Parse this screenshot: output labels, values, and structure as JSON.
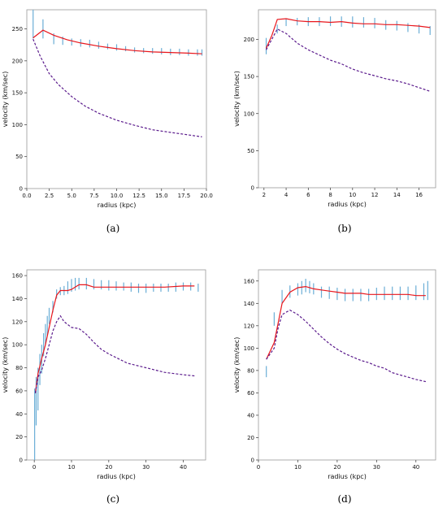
{
  "colors": {
    "model": "#e8161c",
    "baryonic": "#5a1a8c",
    "error_bars": "#6baed6",
    "axis": "#999999"
  },
  "chart_data": [
    {
      "type": "line",
      "caption": "(a)",
      "xlabel": "radius (kpc)",
      "ylabel": "velocity (km/sec)",
      "xlim": [
        0,
        20
      ],
      "ylim": [
        0,
        280
      ],
      "xticks": [
        0.0,
        2.5,
        5.0,
        7.5,
        10.0,
        12.5,
        15.0,
        17.5,
        20.0
      ],
      "xtick_labels": [
        "0.0",
        "2.5",
        "5.0",
        "7.5",
        "10.0",
        "12.5",
        "15.0",
        "17.5",
        "20.0"
      ],
      "yticks": [
        0,
        50,
        100,
        150,
        200,
        250
      ],
      "ytick_labels": [
        "0",
        "50",
        "100",
        "150",
        "200",
        "250"
      ],
      "series": [
        {
          "style": "solid",
          "color": "#e8161c",
          "x": [
            0.7,
            1.8,
            3.0,
            4.5,
            6.0,
            8.0,
            10.0,
            12.0,
            14.0,
            16.0,
            18.0,
            19.5
          ],
          "y": [
            236,
            248,
            240,
            233,
            228,
            223,
            219,
            216,
            214,
            213,
            212,
            211
          ]
        },
        {
          "style": "dashed",
          "color": "#5a1a8c",
          "x": [
            0.7,
            1.5,
            2.5,
            3.5,
            5.0,
            6.5,
            8.0,
            10.0,
            12.0,
            14.0,
            16.0,
            18.0,
            19.5
          ],
          "y": [
            234,
            207,
            180,
            163,
            144,
            129,
            118,
            107,
            99,
            92,
            88,
            84,
            81
          ]
        }
      ],
      "errorbars": {
        "x": [
          0.7,
          1.8,
          3.0,
          4.0,
          5.0,
          6.0,
          7.0,
          8.0,
          9.0,
          10.0,
          11.0,
          12.0,
          13.0,
          14.0,
          15.0,
          16.0,
          17.0,
          18.0,
          19.0,
          19.5
        ],
        "lo": [
          235,
          235,
          226,
          225,
          224,
          222,
          221,
          219,
          218,
          216,
          215,
          213,
          212,
          211,
          210,
          209,
          209,
          208,
          208,
          208
        ],
        "hi": [
          280,
          265,
          243,
          238,
          235,
          234,
          233,
          230,
          227,
          226,
          223,
          221,
          220,
          220,
          220,
          219,
          219,
          218,
          218,
          218
        ]
      }
    },
    {
      "type": "line",
      "caption": "(b)",
      "xlabel": "radius (kpc)",
      "ylabel": "velocity (km/sec)",
      "xlim": [
        1.5,
        17.5
      ],
      "ylim": [
        0,
        240
      ],
      "xticks": [
        2,
        4,
        6,
        8,
        10,
        12,
        14,
        16
      ],
      "xtick_labels": [
        "2",
        "4",
        "6",
        "8",
        "10",
        "12",
        "14",
        "16"
      ],
      "yticks": [
        0,
        50,
        100,
        150,
        200
      ],
      "ytick_labels": [
        "0",
        "50",
        "100",
        "150",
        "200"
      ],
      "series": [
        {
          "style": "solid",
          "color": "#e8161c",
          "x": [
            2.2,
            2.7,
            3.2,
            4.0,
            5.0,
            6.0,
            7.0,
            8.0,
            9.0,
            10.0,
            11.0,
            12.0,
            13.0,
            14.0,
            15.0,
            16.0,
            17.0
          ],
          "y": [
            188,
            205,
            227,
            228,
            225,
            224,
            224,
            223,
            224,
            222,
            221,
            221,
            220,
            220,
            219,
            218,
            216
          ]
        },
        {
          "style": "dashed",
          "color": "#5a1a8c",
          "x": [
            2.2,
            2.7,
            3.2,
            4.0,
            5.0,
            6.0,
            7.0,
            8.0,
            9.0,
            10.0,
            11.0,
            12.0,
            13.0,
            14.0,
            15.0,
            16.0,
            17.0
          ],
          "y": [
            186,
            200,
            214,
            208,
            195,
            186,
            179,
            172,
            167,
            160,
            155,
            151,
            147,
            144,
            140,
            135,
            130
          ]
        }
      ],
      "errorbars": {
        "x": [
          2.2,
          3.2,
          4.0,
          5.0,
          6.0,
          7.0,
          8.0,
          9.0,
          10.0,
          11.0,
          12.0,
          13.0,
          14.0,
          15.0,
          16.0,
          17.0
        ],
        "lo": [
          180,
          208,
          218,
          219,
          218,
          218,
          218,
          217,
          216,
          216,
          215,
          213,
          212,
          210,
          208,
          206
        ],
        "hi": [
          202,
          220,
          228,
          229,
          230,
          230,
          231,
          231,
          231,
          230,
          229,
          226,
          225,
          222,
          220,
          218
        ]
      }
    },
    {
      "type": "line",
      "caption": "(c)",
      "xlabel": "radius (kpc)",
      "ylabel": "velocity (km/sec)",
      "xlim": [
        -2,
        46
      ],
      "ylim": [
        0,
        165
      ],
      "xticks": [
        0,
        10,
        20,
        30,
        40
      ],
      "xtick_labels": [
        "0",
        "10",
        "20",
        "30",
        "40"
      ],
      "yticks": [
        0,
        20,
        40,
        60,
        80,
        100,
        120,
        140,
        160
      ],
      "ytick_labels": [
        "0",
        "20",
        "40",
        "60",
        "80",
        "100",
        "120",
        "140",
        "160"
      ],
      "series": [
        {
          "style": "solid",
          "color": "#e8161c",
          "x": [
            0.3,
            1,
            2,
            3,
            4,
            5,
            6,
            7,
            8,
            9,
            10,
            12,
            14,
            16,
            18,
            20,
            25,
            30,
            35,
            40,
            43
          ],
          "y": [
            58,
            75,
            88,
            100,
            115,
            130,
            143,
            147,
            147,
            147,
            148,
            152,
            152,
            150,
            150,
            150,
            150,
            150,
            150,
            151,
            151
          ]
        },
        {
          "style": "dashed",
          "color": "#5a1a8c",
          "x": [
            0.3,
            1,
            2,
            3,
            4,
            5,
            6,
            7,
            8,
            10,
            12,
            14,
            16,
            18,
            20,
            25,
            30,
            35,
            40,
            43
          ],
          "y": [
            58,
            72,
            78,
            88,
            100,
            112,
            120,
            125,
            120,
            115,
            114,
            109,
            102,
            96,
            92,
            84,
            80,
            76,
            74,
            73
          ]
        }
      ],
      "errorbars": {
        "x": [
          0.1,
          0.5,
          1.0,
          1.5,
          2.0,
          2.5,
          3.0,
          3.5,
          4.0,
          5.0,
          6.0,
          7.0,
          8.0,
          9.0,
          10.0,
          11.0,
          12.0,
          14.0,
          16.0,
          18.0,
          20.0,
          22.0,
          24.0,
          26.0,
          28.0,
          30.0,
          32.0,
          34.0,
          36.0,
          38.0,
          40.0,
          42.0,
          44.0
        ],
        "lo": [
          0,
          30,
          43,
          65,
          75,
          90,
          100,
          108,
          118,
          128,
          140,
          143,
          143,
          144,
          146,
          147,
          148,
          148,
          148,
          148,
          147,
          147,
          147,
          146,
          145,
          145,
          146,
          146,
          146,
          146,
          147,
          147,
          146
        ],
        "hi": [
          62,
          72,
          80,
          92,
          100,
          110,
          118,
          125,
          132,
          138,
          148,
          150,
          151,
          155,
          157,
          158,
          158,
          158,
          157,
          156,
          156,
          155,
          154,
          154,
          153,
          153,
          153,
          153,
          153,
          154,
          154,
          154,
          153
        ]
      }
    },
    {
      "type": "line",
      "caption": "(d)",
      "xlabel": "radius (kpc)",
      "ylabel": "velocity (km/sec)",
      "xlim": [
        0,
        45
      ],
      "ylim": [
        0,
        170
      ],
      "xticks": [
        0,
        10,
        20,
        30,
        40
      ],
      "xtick_labels": [
        "0",
        "10",
        "20",
        "30",
        "40"
      ],
      "yticks": [
        0,
        20,
        40,
        60,
        80,
        100,
        120,
        140,
        160
      ],
      "ytick_labels": [
        "0",
        "20",
        "40",
        "60",
        "80",
        "100",
        "120",
        "140",
        "160"
      ],
      "series": [
        {
          "style": "solid",
          "color": "#e8161c",
          "x": [
            2,
            4,
            6,
            8,
            10,
            12,
            14,
            16,
            18,
            20,
            22,
            24,
            26,
            28,
            30,
            32,
            34,
            36,
            38,
            40,
            42.5
          ],
          "y": [
            90,
            105,
            140,
            150,
            154,
            155,
            153,
            152,
            151,
            150,
            149,
            149,
            149,
            148,
            148,
            148,
            148,
            148,
            148,
            147,
            147
          ]
        },
        {
          "style": "dashed",
          "color": "#5a1a8c",
          "x": [
            2,
            4,
            5,
            6,
            7,
            8,
            10,
            12,
            14,
            16,
            18,
            20,
            22,
            24,
            26,
            28,
            30,
            32,
            34,
            36,
            38,
            40,
            42.5
          ],
          "y": [
            90,
            100,
            118,
            130,
            132,
            134,
            130,
            124,
            117,
            110,
            104,
            99,
            95,
            92,
            89,
            87,
            84,
            82,
            78,
            76,
            74,
            72,
            70
          ]
        }
      ],
      "errorbars": {
        "x": [
          2,
          4,
          6,
          8,
          10,
          11,
          12,
          13,
          14,
          16,
          18,
          20,
          22,
          24,
          26,
          28,
          30,
          32,
          34,
          36,
          38,
          40,
          42,
          43
        ],
        "lo": [
          74,
          120,
          140,
          145,
          147,
          148,
          150,
          149,
          148,
          145,
          144,
          143,
          142,
          142,
          142,
          142,
          143,
          143,
          143,
          143,
          143,
          143,
          143,
          143
        ],
        "hi": [
          84,
          132,
          152,
          156,
          158,
          160,
          162,
          160,
          158,
          155,
          155,
          154,
          153,
          153,
          153,
          153,
          154,
          155,
          155,
          155,
          155,
          156,
          158,
          160
        ]
      }
    }
  ]
}
